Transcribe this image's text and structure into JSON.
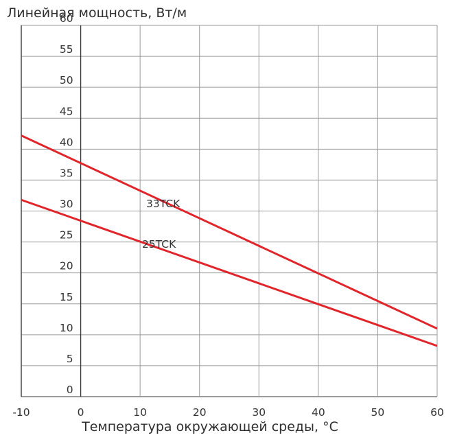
{
  "chart_data": {
    "type": "line",
    "ylabel": "Линейная мощность, Вт/м",
    "xlabel": "Температура окружающей среды, °C",
    "xlim": [
      -10,
      60
    ],
    "ylim": [
      0,
      60
    ],
    "x_ticks": [
      -10,
      0,
      10,
      20,
      30,
      40,
      50,
      60
    ],
    "y_ticks": [
      0,
      5,
      10,
      15,
      20,
      25,
      30,
      35,
      40,
      45,
      50,
      55,
      60
    ],
    "grid": true,
    "series": [
      {
        "name": "33TCK",
        "color": "#e0262b",
        "x": [
          -10,
          60
        ],
        "y": [
          42.2,
          11.0
        ]
      },
      {
        "name": "25TCK",
        "color": "#e0262b",
        "x": [
          -10,
          60
        ],
        "y": [
          31.8,
          8.2
        ]
      }
    ]
  }
}
